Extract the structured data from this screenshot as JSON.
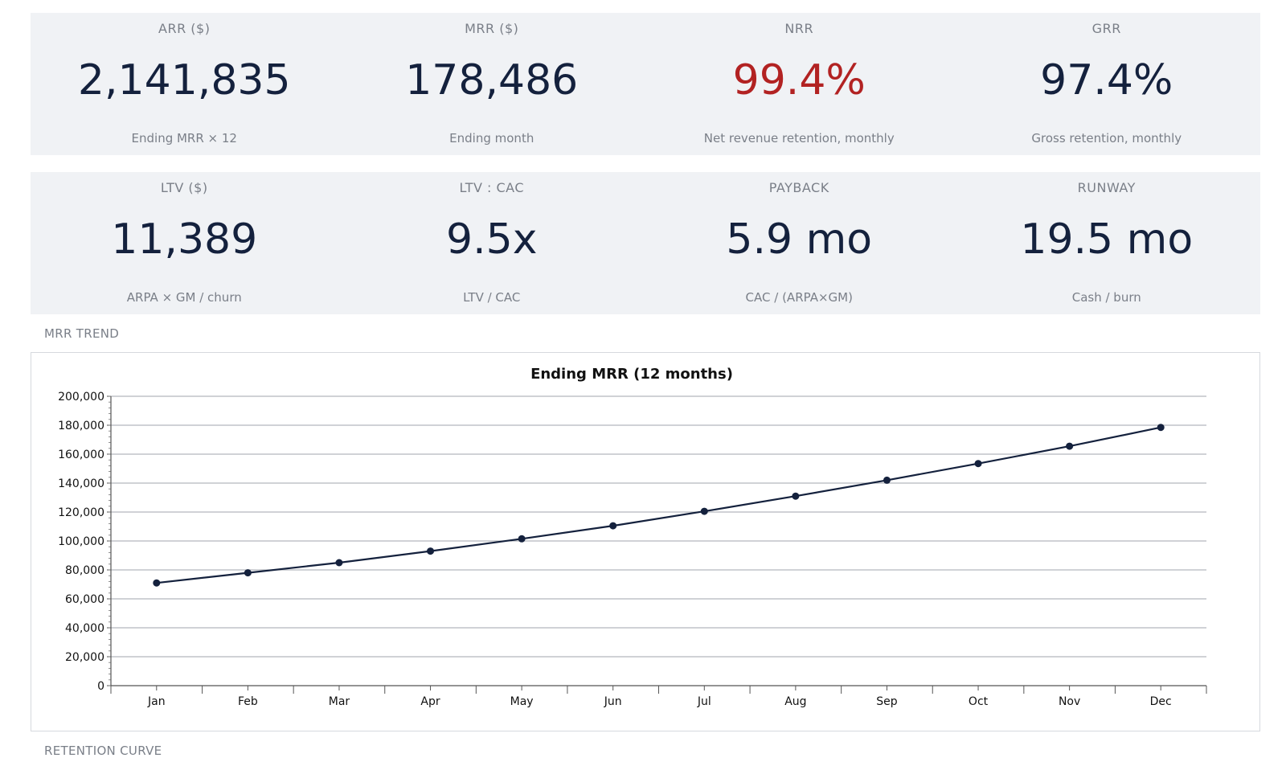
{
  "kpis": [
    {
      "label": "ARR ($)",
      "value": "2,141,835",
      "sub": "Ending MRR × 12"
    },
    {
      "label": "MRR ($)",
      "value": "178,486",
      "sub": "Ending month"
    },
    {
      "label": "NRR",
      "value": "99.4%",
      "sub": "Net revenue retention, monthly",
      "color": "#b22222"
    },
    {
      "label": "GRR",
      "value": "97.4%",
      "sub": "Gross retention, monthly"
    },
    {
      "label": "LTV ($)",
      "value": "11,389",
      "sub": "ARPA × GM / churn"
    },
    {
      "label": "LTV : CAC",
      "value": "9.5x",
      "sub": "LTV / CAC"
    },
    {
      "label": "PAYBACK",
      "value": "5.9 mo",
      "sub": "CAC / (ARPA×GM)"
    },
    {
      "label": "RUNWAY",
      "value": "19.5 mo",
      "sub": "Cash / burn"
    }
  ],
  "sections": {
    "mrr_trend": "MRR TREND",
    "retention_curve": "RETENTION CURVE"
  },
  "colors": {
    "value_default": "#14213d",
    "value_alert": "#b22222",
    "line": "#14213d"
  },
  "chart_data": {
    "type": "line",
    "title": "Ending MRR (12 months)",
    "xlabel": "",
    "ylabel": "",
    "categories": [
      "Jan",
      "Feb",
      "Mar",
      "Apr",
      "May",
      "Jun",
      "Jul",
      "Aug",
      "Sep",
      "Oct",
      "Nov",
      "Dec"
    ],
    "values": [
      71000,
      78000,
      85000,
      93000,
      101500,
      110500,
      120500,
      131000,
      142000,
      153500,
      165500,
      178486
    ],
    "ylim": [
      0,
      200000
    ],
    "yticks": [
      "0",
      "20,000",
      "40,000",
      "60,000",
      "80,000",
      "100,000",
      "120,000",
      "140,000",
      "160,000",
      "180,000",
      "200,000"
    ],
    "grid": true
  }
}
